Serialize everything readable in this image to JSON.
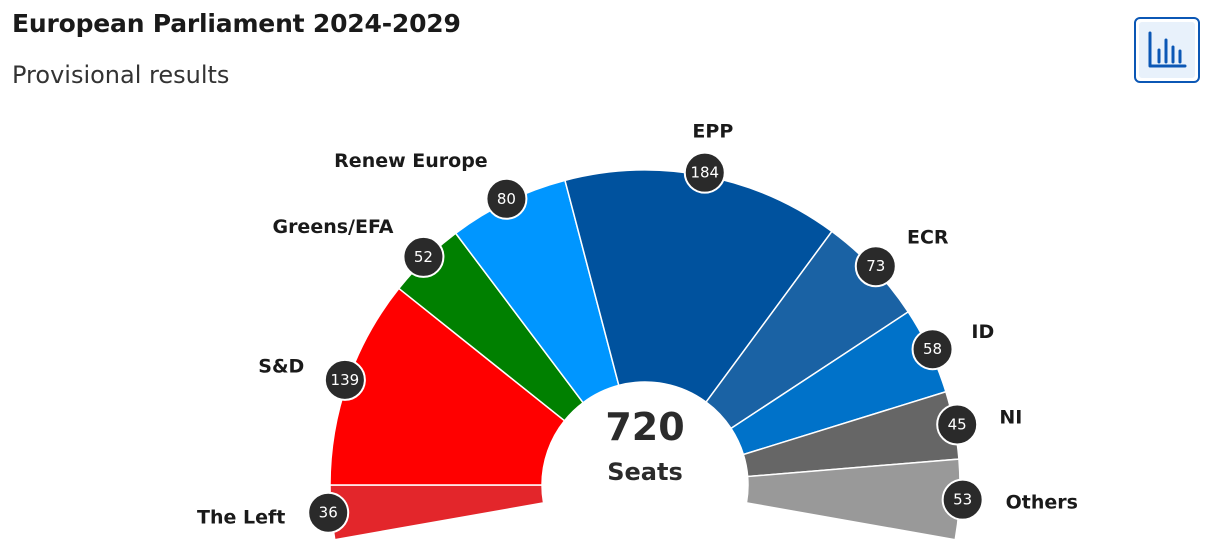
{
  "header": {
    "title": "European Parliament 2024-2029",
    "subtitle": "Provisional results",
    "chart_button_icon": "bar-chart-icon"
  },
  "chart_data": {
    "type": "pie",
    "variant": "parliament-hemicycle",
    "total_value": "720",
    "total_label": "Seats",
    "series": [
      {
        "name": "The Left",
        "value": 36,
        "color": "#e3262b"
      },
      {
        "name": "S&D",
        "value": 139,
        "color": "#ff0000"
      },
      {
        "name": "Greens/EFA",
        "value": 52,
        "color": "#008000"
      },
      {
        "name": "Renew Europe",
        "value": 80,
        "color": "#0096ff"
      },
      {
        "name": "EPP",
        "value": 184,
        "color": "#00529e"
      },
      {
        "name": "ECR",
        "value": 73,
        "color": "#1a62a4"
      },
      {
        "name": "ID",
        "value": 58,
        "color": "#0072c9"
      },
      {
        "name": "NI",
        "value": 45,
        "color": "#666666"
      },
      {
        "name": "Others",
        "value": 53,
        "color": "#999999"
      }
    ]
  }
}
